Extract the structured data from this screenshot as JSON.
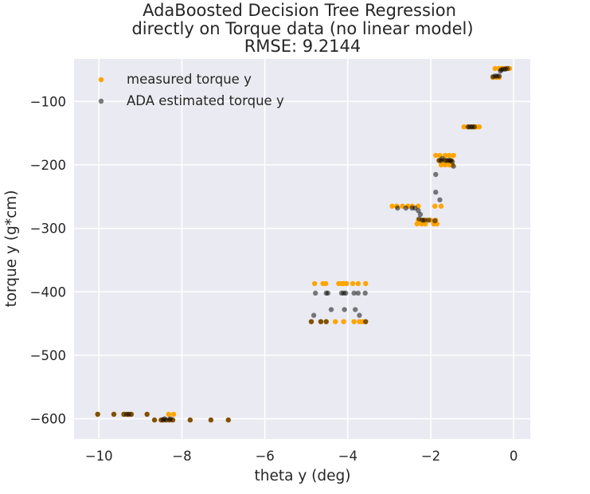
{
  "chart_data": {
    "type": "scatter",
    "title": [
      "AdaBoosted Decision Tree Regression",
      "directly on Torque data (no linear model)",
      "RMSE: 9.2144"
    ],
    "xlabel": "theta y (deg)",
    "ylabel": "torque y (g*cm)",
    "xlim": [
      -10.6,
      0.4
    ],
    "ylim": [
      -632,
      -33
    ],
    "xticks": [
      -10,
      -8,
      -6,
      -4,
      -2,
      0
    ],
    "xtick_labels": [
      "−10",
      "−8",
      "−6",
      "−4",
      "−2",
      "0"
    ],
    "yticks": [
      -600,
      -500,
      -400,
      -300,
      -200,
      -100
    ],
    "ytick_labels": [
      "−600",
      "−500",
      "−400",
      "−300",
      "−200",
      "−100"
    ],
    "grid": true,
    "legend_position": "top-left",
    "colors": {
      "background": "#eaeaf2",
      "grid": "#ffffff",
      "measured": "#ffa500",
      "estimated": "#000000"
    },
    "series": [
      {
        "name": "measured torque y",
        "color": "#ffa500",
        "opacity": 1.0,
        "points": [
          [
            -10.03,
            -593
          ],
          [
            -9.64,
            -593
          ],
          [
            -9.4,
            -593
          ],
          [
            -9.33,
            -593
          ],
          [
            -9.28,
            -593
          ],
          [
            -9.22,
            -593
          ],
          [
            -8.84,
            -593
          ],
          [
            -8.66,
            -602
          ],
          [
            -8.5,
            -602
          ],
          [
            -8.45,
            -602
          ],
          [
            -8.38,
            -602
          ],
          [
            -8.3,
            -602
          ],
          [
            -8.22,
            -602
          ],
          [
            -7.8,
            -602
          ],
          [
            -7.3,
            -602
          ],
          [
            -6.88,
            -602
          ],
          [
            -8.32,
            -593
          ],
          [
            -8.2,
            -593
          ],
          [
            -4.8,
            -387
          ],
          [
            -4.6,
            -387
          ],
          [
            -4.53,
            -387
          ],
          [
            -4.22,
            -387
          ],
          [
            -4.15,
            -387
          ],
          [
            -4.1,
            -387
          ],
          [
            -4.03,
            -387
          ],
          [
            -3.88,
            -387
          ],
          [
            -3.75,
            -387
          ],
          [
            -3.57,
            -387
          ],
          [
            -4.88,
            -447
          ],
          [
            -4.65,
            -447
          ],
          [
            -4.52,
            -447
          ],
          [
            -4.3,
            -447
          ],
          [
            -4.1,
            -447
          ],
          [
            -3.85,
            -447
          ],
          [
            -3.72,
            -447
          ],
          [
            -3.65,
            -447
          ],
          [
            -3.57,
            -447
          ],
          [
            -2.93,
            -265
          ],
          [
            -2.82,
            -265
          ],
          [
            -2.68,
            -265
          ],
          [
            -2.55,
            -265
          ],
          [
            -2.45,
            -265
          ],
          [
            -2.3,
            -265
          ],
          [
            -1.9,
            -265
          ],
          [
            -1.75,
            -265
          ],
          [
            -2.3,
            -287
          ],
          [
            -2.2,
            -287
          ],
          [
            -2.1,
            -287
          ],
          [
            -2.0,
            -287
          ],
          [
            -1.88,
            -287
          ],
          [
            -2.33,
            -293
          ],
          [
            -2.22,
            -293
          ],
          [
            -2.13,
            -293
          ],
          [
            -1.93,
            -293
          ],
          [
            -1.85,
            -293
          ],
          [
            -1.88,
            -185
          ],
          [
            -1.78,
            -185
          ],
          [
            -1.65,
            -185
          ],
          [
            -1.55,
            -185
          ],
          [
            -1.45,
            -185
          ],
          [
            -1.8,
            -193
          ],
          [
            -1.7,
            -193
          ],
          [
            -1.6,
            -193
          ],
          [
            -1.5,
            -193
          ],
          [
            -1.75,
            -200
          ],
          [
            -1.65,
            -200
          ],
          [
            -1.55,
            -200
          ],
          [
            -1.48,
            -200
          ],
          [
            -1.2,
            -140
          ],
          [
            -1.1,
            -140
          ],
          [
            -1.02,
            -140
          ],
          [
            -0.95,
            -140
          ],
          [
            -0.9,
            -140
          ],
          [
            -0.83,
            -140
          ],
          [
            -0.5,
            -62
          ],
          [
            -0.42,
            -62
          ],
          [
            -0.35,
            -62
          ],
          [
            -0.45,
            -48
          ],
          [
            -0.35,
            -48
          ],
          [
            -0.28,
            -48
          ],
          [
            -0.2,
            -48
          ],
          [
            -0.1,
            -48
          ]
        ]
      },
      {
        "name": "ADA estimated torque y",
        "color": "#000000",
        "opacity": 0.5,
        "points": [
          [
            -10.03,
            -593
          ],
          [
            -9.64,
            -593
          ],
          [
            -9.4,
            -593
          ],
          [
            -9.33,
            -593
          ],
          [
            -9.28,
            -593
          ],
          [
            -9.22,
            -593
          ],
          [
            -8.84,
            -593
          ],
          [
            -8.66,
            -602
          ],
          [
            -8.5,
            -602
          ],
          [
            -8.45,
            -602
          ],
          [
            -8.38,
            -602
          ],
          [
            -8.3,
            -602
          ],
          [
            -8.22,
            -602
          ],
          [
            -7.8,
            -602
          ],
          [
            -7.3,
            -602
          ],
          [
            -6.88,
            -602
          ],
          [
            -8.42,
            -600
          ],
          [
            -8.28,
            -600
          ],
          [
            -4.88,
            -447
          ],
          [
            -4.65,
            -447
          ],
          [
            -4.52,
            -447
          ],
          [
            -3.57,
            -447
          ],
          [
            -4.82,
            -437
          ],
          [
            -4.78,
            -402
          ],
          [
            -4.52,
            -402
          ],
          [
            -4.48,
            -402
          ],
          [
            -4.15,
            -402
          ],
          [
            -4.1,
            -402
          ],
          [
            -4.05,
            -402
          ],
          [
            -3.85,
            -402
          ],
          [
            -3.75,
            -402
          ],
          [
            -3.58,
            -402
          ],
          [
            -4.4,
            -428
          ],
          [
            -4.08,
            -428
          ],
          [
            -3.82,
            -428
          ],
          [
            -3.72,
            -437
          ],
          [
            -2.8,
            -268
          ],
          [
            -2.6,
            -268
          ],
          [
            -2.45,
            -268
          ],
          [
            -2.38,
            -268
          ],
          [
            -2.3,
            -272
          ],
          [
            -2.25,
            -278
          ],
          [
            -2.28,
            -285
          ],
          [
            -2.2,
            -287
          ],
          [
            -2.15,
            -287
          ],
          [
            -2.05,
            -287
          ],
          [
            -1.9,
            -288
          ],
          [
            -1.88,
            -215
          ],
          [
            -1.88,
            -243
          ],
          [
            -1.78,
            -255
          ],
          [
            -1.8,
            -193
          ],
          [
            -1.75,
            -193
          ],
          [
            -1.72,
            -190
          ],
          [
            -1.65,
            -193
          ],
          [
            -1.6,
            -193
          ],
          [
            -1.55,
            -193
          ],
          [
            -1.52,
            -193
          ],
          [
            -1.48,
            -195
          ],
          [
            -1.45,
            -202
          ],
          [
            -1.1,
            -140
          ],
          [
            -1.05,
            -140
          ],
          [
            -1.0,
            -140
          ],
          [
            -0.95,
            -140
          ],
          [
            -0.5,
            -61
          ],
          [
            -0.45,
            -60
          ],
          [
            -0.4,
            -60
          ],
          [
            -0.35,
            -60
          ],
          [
            -0.32,
            -52
          ],
          [
            -0.3,
            -50
          ],
          [
            -0.25,
            -49
          ],
          [
            -0.2,
            -49
          ],
          [
            -0.15,
            -48
          ]
        ]
      }
    ]
  }
}
